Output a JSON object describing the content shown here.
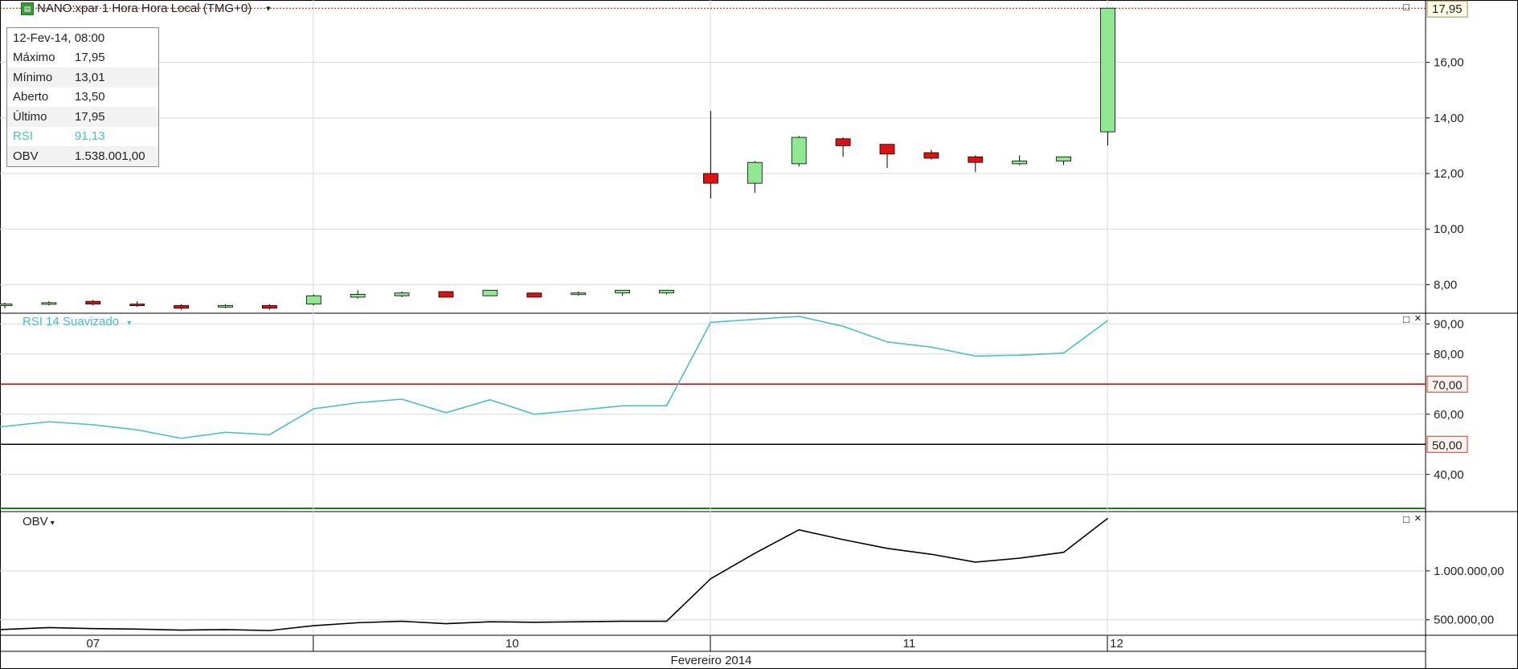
{
  "header": {
    "title": "NANO:xpar 1 Hora Hora Local (TMG+0)",
    "icon": "chart-icon",
    "dropdown_glyph": "▾"
  },
  "info_box": {
    "date": "12-Fev-14, 08:00",
    "rows": [
      {
        "key": "Máximo",
        "value": "17,95"
      },
      {
        "key": "Mínimo",
        "value": "13,01"
      },
      {
        "key": "Aberto",
        "value": "13,50"
      },
      {
        "key": "Último",
        "value": "17,95"
      },
      {
        "key": "RSI",
        "value": "91,13"
      },
      {
        "key": "OBV",
        "value": "1.538.001,00"
      }
    ]
  },
  "panels": {
    "rsi_title": "RSI 14 Suavizado",
    "obv_title": "OBV",
    "close_glyph": "×",
    "restore_glyph": "□"
  },
  "colors": {
    "up": "#90e890",
    "down": "#e01010",
    "rsi_line": "#45bfc6",
    "rsi_upper": "#cc0000",
    "rsi_lower": "#000000",
    "obv_line": "#000000",
    "grid": "#d8d8d8",
    "last_price_line": "#cc0000"
  },
  "chart_data": [
    {
      "type": "candlestick",
      "name": "NANO:xpar",
      "last_price_label": "17,95",
      "yticks": [
        8,
        10,
        12,
        14,
        16
      ],
      "ytick_labels": [
        "8,00",
        "10,00",
        "12,00",
        "14,00",
        "16,00"
      ],
      "ylim": [
        7.0,
        18.1
      ],
      "candles": [
        {
          "o": 7.25,
          "h": 7.35,
          "l": 7.15,
          "c": 7.3
        },
        {
          "o": 7.3,
          "h": 7.4,
          "l": 7.25,
          "c": 7.35
        },
        {
          "o": 7.4,
          "h": 7.45,
          "l": 7.25,
          "c": 7.3
        },
        {
          "o": 7.3,
          "h": 7.4,
          "l": 7.2,
          "c": 7.25
        },
        {
          "o": 7.25,
          "h": 7.3,
          "l": 7.1,
          "c": 7.15
        },
        {
          "o": 7.2,
          "h": 7.3,
          "l": 7.15,
          "c": 7.25
        },
        {
          "o": 7.25,
          "h": 7.3,
          "l": 7.1,
          "c": 7.15
        },
        {
          "o": 7.3,
          "h": 7.65,
          "l": 7.25,
          "c": 7.6
        },
        {
          "o": 7.55,
          "h": 7.8,
          "l": 7.5,
          "c": 7.65
        },
        {
          "o": 7.6,
          "h": 7.75,
          "l": 7.55,
          "c": 7.7
        },
        {
          "o": 7.75,
          "h": 7.75,
          "l": 7.55,
          "c": 7.55
        },
        {
          "o": 7.6,
          "h": 7.8,
          "l": 7.6,
          "c": 7.8
        },
        {
          "o": 7.7,
          "h": 7.7,
          "l": 7.55,
          "c": 7.55
        },
        {
          "o": 7.65,
          "h": 7.75,
          "l": 7.6,
          "c": 7.7
        },
        {
          "o": 7.7,
          "h": 7.8,
          "l": 7.6,
          "c": 7.8
        },
        {
          "o": 7.7,
          "h": 7.8,
          "l": 7.65,
          "c": 7.8
        },
        {
          "o": 12.0,
          "h": 14.25,
          "l": 11.1,
          "c": 11.65
        },
        {
          "o": 11.65,
          "h": 12.45,
          "l": 11.3,
          "c": 12.4
        },
        {
          "o": 12.35,
          "h": 13.35,
          "l": 12.25,
          "c": 13.3
        },
        {
          "o": 13.25,
          "h": 13.3,
          "l": 12.6,
          "c": 13.0
        },
        {
          "o": 13.05,
          "h": 13.05,
          "l": 12.2,
          "c": 12.7
        },
        {
          "o": 12.75,
          "h": 12.85,
          "l": 12.5,
          "c": 12.55
        },
        {
          "o": 12.6,
          "h": 12.65,
          "l": 12.05,
          "c": 12.4
        },
        {
          "o": 12.35,
          "h": 12.65,
          "l": 12.3,
          "c": 12.45
        },
        {
          "o": 12.45,
          "h": 12.6,
          "l": 12.3,
          "c": 12.6
        },
        {
          "o": 13.5,
          "h": 17.95,
          "l": 13.01,
          "c": 17.95
        }
      ]
    },
    {
      "type": "line",
      "name": "RSI 14 Suavizado",
      "yticks": [
        40,
        60,
        80,
        90
      ],
      "ytick_labels": [
        "40,00",
        "60,00",
        "80,00",
        "90,00"
      ],
      "ylim": [
        29,
        93
      ],
      "levels": [
        {
          "value": 70,
          "label": "70,00"
        },
        {
          "value": 50,
          "label": "50,00"
        }
      ],
      "values": [
        55.8,
        57.5,
        56.5,
        54.8,
        52.0,
        54.0,
        53.2,
        61.8,
        63.8,
        65.0,
        60.5,
        64.8,
        60.0,
        61.3,
        62.8,
        62.8,
        90.5,
        91.5,
        92.5,
        89.2,
        84.0,
        82.3,
        79.3,
        79.6,
        80.3,
        91.1
      ]
    },
    {
      "type": "line",
      "name": "OBV",
      "yticks": [
        500000,
        1000000
      ],
      "ytick_labels": [
        "500.000,00",
        "1.000.000,00"
      ],
      "ylim": [
        350000,
        1590000
      ],
      "values": [
        400000,
        420000,
        410000,
        405000,
        395000,
        400000,
        390000,
        440000,
        470000,
        485000,
        460000,
        480000,
        475000,
        480000,
        485000,
        485000,
        920000,
        1180000,
        1420000,
        1320000,
        1230000,
        1170000,
        1090000,
        1130000,
        1190000,
        1538001
      ]
    }
  ],
  "xaxis": {
    "day_labels": [
      {
        "index": 2,
        "label": "07"
      },
      {
        "index": 11.5,
        "label": "10"
      },
      {
        "index": 20.5,
        "label": "11"
      },
      {
        "index": 25.2,
        "label": "12"
      }
    ],
    "separator_indices": [
      7,
      16,
      25
    ],
    "month_label": "Fevereiro 2014"
  }
}
